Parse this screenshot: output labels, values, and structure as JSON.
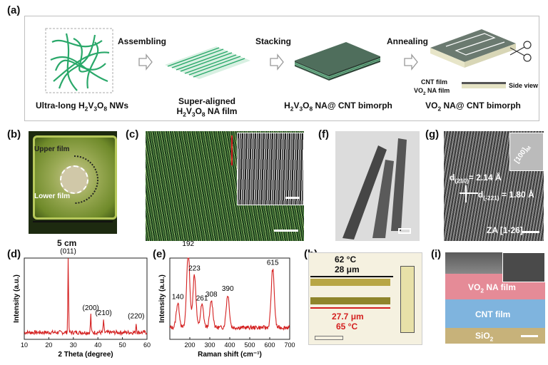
{
  "panel_labels": {
    "a": "(a)",
    "b": "(b)",
    "c": "(c)",
    "d": "(d)",
    "e": "(e)",
    "f": "(f)",
    "g": "(g)",
    "h": "(h)",
    "i": "(i)"
  },
  "process": {
    "step1_caption_html": "Ultra-long H<sub>2</sub>V<sub>3</sub>O<sub>8</sub> NWs",
    "step2_caption_html": "Super-aligned<br>H<sub>2</sub>V<sub>3</sub>O<sub>8</sub> NA film",
    "step3_caption_html": "H<sub>2</sub>V<sub>3</sub>O<sub>8</sub> NA@ CNT bimorph",
    "step4_caption_html": "VO<sub>2</sub> NA@ CNT bimorph",
    "arrow1": "Assembling",
    "arrow2": "Stacking",
    "arrow3": "Annealing",
    "cnt_film": "CNT film",
    "vo2_film_html": "VO<sub>2</sub> NA film",
    "side_view": "Side view"
  },
  "panel_b": {
    "upper": "Upper film",
    "lower": "Lower film",
    "scale": "5 cm"
  },
  "panel_g": {
    "dir_html": "[100]<sub>M</sub>",
    "d1_html": "d<sub>(210)</sub>= 2.14 Å",
    "d2_html": "d<sub>(-221)</sub> = 1.80 Å",
    "za": "ZA [1-26]"
  },
  "panel_h": {
    "t1": "62 °C",
    "w1": "28 μm",
    "w2": "27.7 μm",
    "t2": "65 °C"
  },
  "panel_i": {
    "vo2_html": "VO<sub>2</sub> NA film",
    "cnt": "CNT film",
    "sio2_html": "SiO<sub>2</sub>"
  },
  "colors": {
    "green": "#2aa86a",
    "red": "#d42020",
    "pink": "#e58b97",
    "blue": "#7fb4de"
  },
  "chart_data": [
    {
      "type": "line",
      "title": "",
      "xlabel": "2 Theta (degree)",
      "ylabel": "Intensity (a.u.)",
      "xlim": [
        10,
        60
      ],
      "x_ticks": [
        10,
        20,
        30,
        40,
        50,
        60
      ],
      "peaks": [
        {
          "x": 27.9,
          "y": 0.92,
          "label": "(011)"
        },
        {
          "x": 37.1,
          "y": 0.22,
          "label": "(200)"
        },
        {
          "x": 42.3,
          "y": 0.16,
          "label": "(210)"
        },
        {
          "x": 55.6,
          "y": 0.12,
          "label": "(220)"
        }
      ],
      "series": [
        {
          "name": "XRD",
          "color": "#d42020"
        }
      ]
    },
    {
      "type": "line",
      "title": "",
      "xlabel": "Raman shift (cm⁻¹)",
      "ylabel": "Intensity (a.u.)",
      "xlim": [
        100,
        700
      ],
      "x_ticks": [
        200,
        300,
        400,
        500,
        600,
        700
      ],
      "peaks": [
        {
          "x": 140,
          "y": 0.3,
          "label": "140"
        },
        {
          "x": 192,
          "y": 0.95,
          "label": "192"
        },
        {
          "x": 223,
          "y": 0.65,
          "label": "223"
        },
        {
          "x": 261,
          "y": 0.28,
          "label": "261"
        },
        {
          "x": 308,
          "y": 0.33,
          "label": "308"
        },
        {
          "x": 390,
          "y": 0.4,
          "label": "390"
        },
        {
          "x": 615,
          "y": 0.72,
          "label": "615"
        }
      ],
      "series": [
        {
          "name": "Raman",
          "color": "#d42020"
        }
      ]
    }
  ]
}
